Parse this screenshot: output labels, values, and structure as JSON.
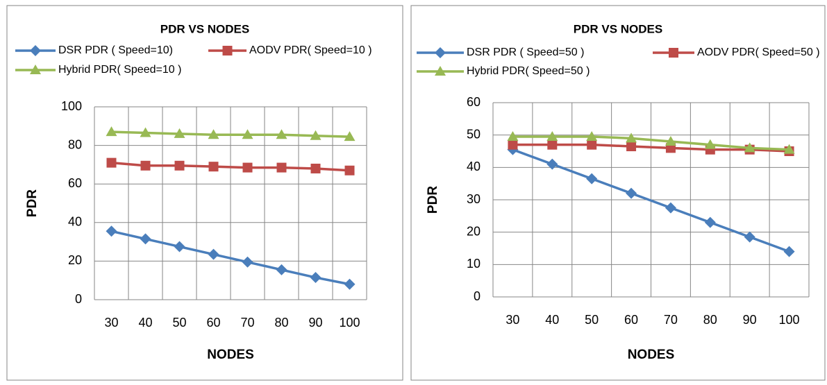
{
  "chart_data": [
    {
      "type": "line",
      "title": "PDR VS NODES",
      "xlabel": "NODES",
      "ylabel": "PDR",
      "categories": [
        "30",
        "40",
        "50",
        "60",
        "70",
        "80",
        "90",
        "100"
      ],
      "ylim": [
        0,
        100
      ],
      "yticks": [
        0,
        20,
        40,
        60,
        80,
        100
      ],
      "grid": true,
      "series": [
        {
          "name": "DSR PDR ( Speed=10)",
          "color": "#4a7ebb",
          "marker": "diamond",
          "values": [
            35.5,
            31.5,
            27.5,
            23.5,
            19.5,
            15.5,
            11.5,
            8
          ]
        },
        {
          "name": "AODV PDR( Speed=10 )",
          "color": "#be4b48",
          "marker": "square",
          "values": [
            71,
            69.5,
            69.5,
            69,
            68.5,
            68.5,
            68,
            67
          ]
        },
        {
          "name": "Hybrid PDR( Speed=10 )",
          "color": "#98b954",
          "marker": "triangle",
          "values": [
            87,
            86.5,
            86,
            85.5,
            85.5,
            85.5,
            85,
            84.5
          ]
        }
      ]
    },
    {
      "type": "line",
      "title": "PDR VS NODES",
      "xlabel": "NODES",
      "ylabel": "PDR",
      "categories": [
        "30",
        "40",
        "50",
        "60",
        "70",
        "80",
        "90",
        "100"
      ],
      "ylim": [
        0,
        60
      ],
      "yticks": [
        0,
        10,
        20,
        30,
        40,
        50,
        60
      ],
      "grid": true,
      "series": [
        {
          "name": "DSR PDR ( Speed=50 )",
          "color": "#4a7ebb",
          "marker": "diamond",
          "values": [
            45.5,
            41,
            36.5,
            32,
            27.5,
            23,
            18.5,
            14
          ]
        },
        {
          "name": "AODV PDR( Speed=50 )",
          "color": "#be4b48",
          "marker": "square",
          "values": [
            47,
            47,
            47,
            46.5,
            46,
            45.5,
            45.5,
            45
          ]
        },
        {
          "name": "Hybrid PDR( Speed=50 )",
          "color": "#98b954",
          "marker": "triangle",
          "values": [
            49.5,
            49.5,
            49.5,
            49,
            48,
            47,
            46,
            45.5
          ]
        }
      ]
    }
  ]
}
